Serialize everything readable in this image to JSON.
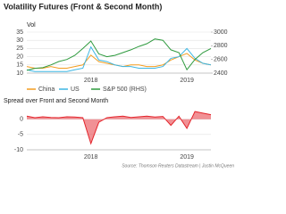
{
  "chart_data": [
    {
      "type": "line",
      "title": "Volatility Futures (Front & Second Month)",
      "y_label": "Vol",
      "categories": [
        null,
        null,
        null,
        null,
        null,
        null,
        null,
        null,
        "2018",
        null,
        null,
        null,
        null,
        null,
        null,
        null,
        null,
        null,
        null,
        null,
        "2019",
        null,
        null,
        null
      ],
      "series": [
        {
          "name": "China",
          "color": "#f39c1f",
          "values": [
            14,
            13,
            13,
            14,
            13,
            13,
            14,
            15,
            21,
            17,
            16,
            15,
            14,
            15,
            15,
            14,
            14,
            15,
            18,
            20,
            22,
            18,
            16,
            15
          ]
        },
        {
          "name": "US",
          "color": "#3cb6e3",
          "values": [
            12,
            11,
            11,
            11,
            11,
            11,
            12,
            13,
            26,
            18,
            17,
            15,
            14,
            14,
            13,
            13,
            13,
            14,
            19,
            20,
            25,
            19,
            16,
            15
          ]
        },
        {
          "name": "S&P 500 (RHS)",
          "color": "#2e9a3e",
          "axis": "y2",
          "values": [
            2440,
            2470,
            2480,
            2520,
            2570,
            2600,
            2660,
            2760,
            2870,
            2680,
            2640,
            2660,
            2700,
            2740,
            2790,
            2830,
            2900,
            2880,
            2740,
            2700,
            2450,
            2600,
            2700,
            2760
          ]
        }
      ],
      "ylim": [
        10,
        35
      ],
      "yticks": [
        10,
        15,
        20,
        25,
        30,
        35
      ],
      "y2lim": [
        2400,
        3000
      ],
      "y2ticks": [
        2400,
        2600,
        2800,
        3000
      ],
      "grid": true
    },
    {
      "type": "area",
      "title": "Spread over Front and Second Month",
      "categories": [
        null,
        null,
        null,
        null,
        null,
        null,
        null,
        null,
        "2018",
        null,
        null,
        null,
        null,
        null,
        null,
        null,
        null,
        null,
        null,
        null,
        "2019",
        null,
        null,
        null
      ],
      "series": [
        {
          "name": "Spread",
          "color": "#e3242b",
          "values": [
            1,
            0.5,
            0.8,
            0.6,
            0.5,
            0.8,
            0.7,
            0.5,
            -8,
            -1,
            0.5,
            0.8,
            1,
            0.6,
            0.8,
            1,
            0.7,
            0.9,
            -2,
            1,
            -3,
            2.5,
            2,
            1.5
          ]
        }
      ],
      "ylim": [
        -10,
        4
      ],
      "yticks": [
        -10,
        -5,
        0
      ],
      "grid": true,
      "source": "Source: Thomson Reuters Datastream | Justin McQueen"
    }
  ]
}
